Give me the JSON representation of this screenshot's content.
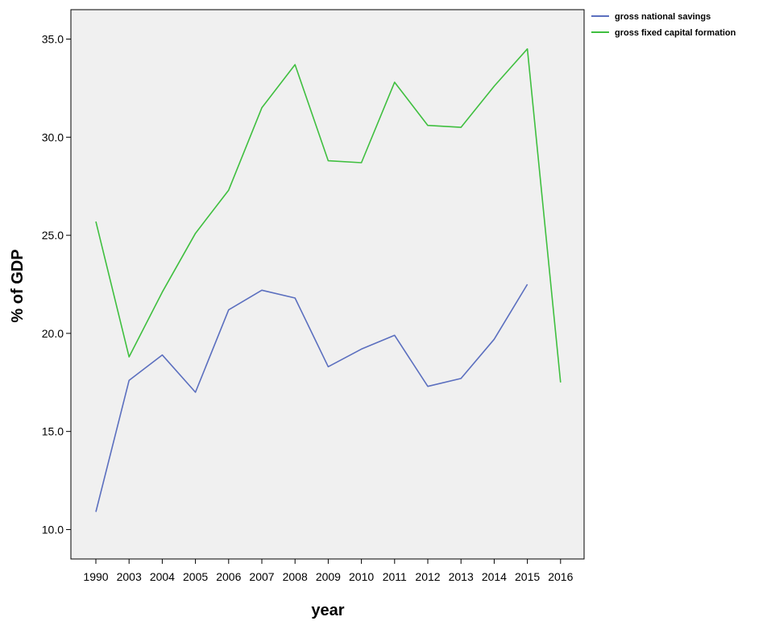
{
  "chart_data": {
    "type": "line",
    "categories": [
      "1990",
      "2003",
      "2004",
      "2005",
      "2006",
      "2007",
      "2008",
      "2009",
      "2010",
      "2011",
      "2012",
      "2013",
      "2014",
      "2015",
      "2016"
    ],
    "series": [
      {
        "name": "gross national savings",
        "color": "#5b6fbf",
        "values": [
          10.9,
          17.6,
          18.9,
          17.0,
          21.2,
          22.2,
          21.8,
          18.3,
          19.2,
          19.9,
          17.3,
          17.7,
          19.7,
          22.5,
          null
        ]
      },
      {
        "name": "gross fixed capital formation",
        "color": "#3fbf3f",
        "values": [
          25.7,
          18.8,
          22.1,
          25.1,
          27.3,
          31.5,
          33.7,
          28.8,
          28.7,
          32.8,
          30.6,
          30.5,
          32.6,
          34.5,
          17.5
        ]
      }
    ],
    "xlabel": "year",
    "ylabel": "% of GDP",
    "ylim": [
      8.5,
      36.5
    ],
    "yticks": [
      10.0,
      15.0,
      20.0,
      25.0,
      30.0,
      35.0
    ],
    "ytick_labels": [
      "10.0",
      "15.0",
      "20.0",
      "25.0",
      "30.0",
      "35.0"
    ],
    "plot_background": "#f0f0f0",
    "grid": false,
    "legend_position": "top-right-outside"
  }
}
